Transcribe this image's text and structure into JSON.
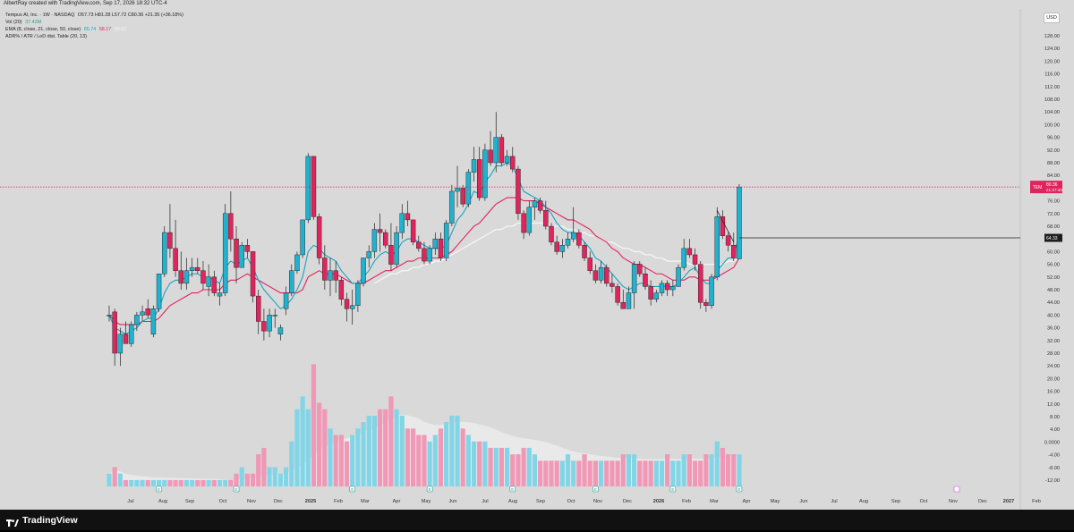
{
  "header": {
    "credit": "AlbertRay created with TradingView.com, Sep 17, 2026 18:32 UTC-4"
  },
  "legend": {
    "symbol": "Tempus AI, Inc. · 1W · NASDAQ",
    "ohlc": "O57.73 H81.28 L57.72 C80.36 +21.35 (+36.18%)",
    "vol_label": "Vol (20)",
    "vol_value": "37.42M",
    "ema_label": "EMA (8, close, 21, close, 50, close)",
    "ema8": "65.74",
    "ema21": "58.17",
    "ema50": "58.00",
    "table_label": "ADR% / ATR / LoD dist. Table (20, 13)"
  },
  "currency": "USD",
  "price_tags": {
    "last_symbol": "TEM",
    "last_price": "80.36",
    "countdown": "21:27:40",
    "hline_price": "64.33"
  },
  "colors": {
    "background": "#d9d9d9",
    "up": "#21b2cf",
    "down": "#e0245e",
    "ema8": "#19a3c3",
    "ema21": "#e0245e",
    "ema50": "#f5f5f5",
    "vol_up": "#82d5e6",
    "vol_down": "#f098b5"
  },
  "branding": {
    "logo_text": "TradingView"
  },
  "chart_data": {
    "type": "candlestick",
    "interval": "1W",
    "ylim": [
      16,
      132
    ],
    "price_ticks": [
      "128.00",
      "124.00",
      "120.00",
      "116.00",
      "112.00",
      "108.00",
      "104.00",
      "100.00",
      "96.00",
      "92.00",
      "88.00",
      "84.00",
      "80.00",
      "76.00",
      "72.00",
      "68.00",
      "64.00",
      "60.00",
      "56.00",
      "52.00",
      "48.00",
      "44.00",
      "40.00",
      "36.00",
      "32.00",
      "28.00",
      "24.00",
      "20.00",
      "16.00",
      "12.00",
      "8.00",
      "4.00",
      "0.0000",
      "-4.00",
      "-8.00",
      "-12.00"
    ],
    "x_ticks": [
      "Jul",
      "Aug",
      "Sep",
      "Oct",
      "Nov",
      "Dec",
      "2025",
      "Feb",
      "Mar",
      "Apr",
      "May",
      "Jun",
      "Jul",
      "Aug",
      "Sep",
      "Oct",
      "Nov",
      "Dec",
      "2026",
      "Feb",
      "Mar",
      "Apr",
      "May",
      "Jun",
      "Jul",
      "Aug",
      "Sep",
      "Oct",
      "Nov",
      "Dec",
      "2027",
      "Feb"
    ],
    "candles": [
      {
        "o": 40,
        "h": 43,
        "l": 38,
        "c": 40
      },
      {
        "o": 41,
        "h": 42,
        "l": 24,
        "c": 28
      },
      {
        "o": 28,
        "h": 36,
        "l": 24,
        "c": 34
      },
      {
        "o": 34,
        "h": 38,
        "l": 31,
        "c": 31
      },
      {
        "o": 31,
        "h": 38,
        "l": 30,
        "c": 37
      },
      {
        "o": 37,
        "h": 41,
        "l": 35,
        "c": 40
      },
      {
        "o": 40,
        "h": 43,
        "l": 38,
        "c": 41
      },
      {
        "o": 42,
        "h": 45,
        "l": 39,
        "c": 40
      },
      {
        "o": 34,
        "h": 43,
        "l": 33,
        "c": 42
      },
      {
        "o": 42,
        "h": 53,
        "l": 41,
        "c": 53
      },
      {
        "o": 53,
        "h": 68,
        "l": 52,
        "c": 66
      },
      {
        "o": 66,
        "h": 75,
        "l": 58,
        "c": 61
      },
      {
        "o": 61,
        "h": 70,
        "l": 52,
        "c": 54
      },
      {
        "o": 54,
        "h": 60,
        "l": 48,
        "c": 50
      },
      {
        "o": 50,
        "h": 58,
        "l": 48,
        "c": 54
      },
      {
        "o": 54,
        "h": 58,
        "l": 52,
        "c": 55
      },
      {
        "o": 55,
        "h": 58,
        "l": 53,
        "c": 54
      },
      {
        "o": 54,
        "h": 57,
        "l": 48,
        "c": 50
      },
      {
        "o": 49,
        "h": 56,
        "l": 46,
        "c": 52
      },
      {
        "o": 52,
        "h": 54,
        "l": 46,
        "c": 47
      },
      {
        "o": 46,
        "h": 50,
        "l": 43,
        "c": 47
      },
      {
        "o": 47,
        "h": 75,
        "l": 46,
        "c": 72
      },
      {
        "o": 72,
        "h": 79,
        "l": 60,
        "c": 64
      },
      {
        "o": 64,
        "h": 68,
        "l": 50,
        "c": 55
      },
      {
        "o": 55,
        "h": 63,
        "l": 55,
        "c": 62
      },
      {
        "o": 62,
        "h": 64,
        "l": 58,
        "c": 60
      },
      {
        "o": 60,
        "h": 60,
        "l": 44,
        "c": 46
      },
      {
        "o": 46,
        "h": 48,
        "l": 34,
        "c": 38
      },
      {
        "o": 38,
        "h": 42,
        "l": 32,
        "c": 35
      },
      {
        "o": 35,
        "h": 42,
        "l": 33,
        "c": 40
      },
      {
        "o": 40,
        "h": 42,
        "l": 36,
        "c": 40
      },
      {
        "o": 34,
        "h": 37,
        "l": 32,
        "c": 36
      },
      {
        "o": 42,
        "h": 49,
        "l": 40,
        "c": 47
      },
      {
        "o": 47,
        "h": 56,
        "l": 46,
        "c": 54
      },
      {
        "o": 54,
        "h": 60,
        "l": 53,
        "c": 59
      },
      {
        "o": 59,
        "h": 70,
        "l": 58,
        "c": 70
      },
      {
        "o": 70,
        "h": 91,
        "l": 69,
        "c": 90
      },
      {
        "o": 90,
        "h": 90,
        "l": 70,
        "c": 71
      },
      {
        "o": 71,
        "h": 72,
        "l": 56,
        "c": 58
      },
      {
        "o": 58,
        "h": 62,
        "l": 48,
        "c": 51
      },
      {
        "o": 51,
        "h": 58,
        "l": 46,
        "c": 54
      },
      {
        "o": 54,
        "h": 57,
        "l": 47,
        "c": 51
      },
      {
        "o": 51,
        "h": 52,
        "l": 43,
        "c": 45
      },
      {
        "o": 45,
        "h": 47,
        "l": 38,
        "c": 42
      },
      {
        "o": 42,
        "h": 48,
        "l": 37,
        "c": 43
      },
      {
        "o": 43,
        "h": 51,
        "l": 41,
        "c": 50
      },
      {
        "o": 50,
        "h": 58,
        "l": 49,
        "c": 58
      },
      {
        "o": 58,
        "h": 62,
        "l": 55,
        "c": 60
      },
      {
        "o": 60,
        "h": 69,
        "l": 58,
        "c": 67
      },
      {
        "o": 67,
        "h": 72,
        "l": 60,
        "c": 66
      },
      {
        "o": 66,
        "h": 67,
        "l": 61,
        "c": 62
      },
      {
        "o": 62,
        "h": 69,
        "l": 54,
        "c": 56
      },
      {
        "o": 56,
        "h": 68,
        "l": 55,
        "c": 66
      },
      {
        "o": 66,
        "h": 75,
        "l": 64,
        "c": 72
      },
      {
        "o": 72,
        "h": 76,
        "l": 68,
        "c": 70
      },
      {
        "o": 70,
        "h": 70,
        "l": 62,
        "c": 63
      },
      {
        "o": 63,
        "h": 65,
        "l": 60,
        "c": 61
      },
      {
        "o": 61,
        "h": 63,
        "l": 56,
        "c": 57
      },
      {
        "o": 57,
        "h": 62,
        "l": 56,
        "c": 61
      },
      {
        "o": 61,
        "h": 66,
        "l": 59,
        "c": 64
      },
      {
        "o": 64,
        "h": 66,
        "l": 57,
        "c": 58
      },
      {
        "o": 58,
        "h": 70,
        "l": 57,
        "c": 69
      },
      {
        "o": 69,
        "h": 81,
        "l": 68,
        "c": 79
      },
      {
        "o": 79,
        "h": 87,
        "l": 74,
        "c": 80
      },
      {
        "o": 80,
        "h": 81,
        "l": 74,
        "c": 75
      },
      {
        "o": 75,
        "h": 86,
        "l": 74,
        "c": 85
      },
      {
        "o": 85,
        "h": 93,
        "l": 82,
        "c": 89
      },
      {
        "o": 89,
        "h": 93,
        "l": 76,
        "c": 77
      },
      {
        "o": 77,
        "h": 94,
        "l": 76,
        "c": 92
      },
      {
        "o": 92,
        "h": 98,
        "l": 87,
        "c": 88
      },
      {
        "o": 88,
        "h": 104,
        "l": 85,
        "c": 96
      },
      {
        "o": 96,
        "h": 97,
        "l": 87,
        "c": 88
      },
      {
        "o": 88,
        "h": 92,
        "l": 87,
        "c": 90
      },
      {
        "o": 90,
        "h": 93,
        "l": 85,
        "c": 86
      },
      {
        "o": 86,
        "h": 87,
        "l": 70,
        "c": 72
      },
      {
        "o": 72,
        "h": 73,
        "l": 64,
        "c": 66
      },
      {
        "o": 66,
        "h": 76,
        "l": 65,
        "c": 74
      },
      {
        "o": 74,
        "h": 77,
        "l": 70,
        "c": 76
      },
      {
        "o": 76,
        "h": 77,
        "l": 72,
        "c": 73
      },
      {
        "o": 73,
        "h": 76,
        "l": 67,
        "c": 68
      },
      {
        "o": 68,
        "h": 69,
        "l": 62,
        "c": 63
      },
      {
        "o": 63,
        "h": 65,
        "l": 59,
        "c": 60
      },
      {
        "o": 60,
        "h": 64,
        "l": 58,
        "c": 62
      },
      {
        "o": 62,
        "h": 66,
        "l": 61,
        "c": 64
      },
      {
        "o": 64,
        "h": 74,
        "l": 63,
        "c": 66
      },
      {
        "o": 66,
        "h": 67,
        "l": 61,
        "c": 62
      },
      {
        "o": 62,
        "h": 63,
        "l": 57,
        "c": 58
      },
      {
        "o": 58,
        "h": 60,
        "l": 53,
        "c": 54
      },
      {
        "o": 54,
        "h": 56,
        "l": 50,
        "c": 51
      },
      {
        "o": 51,
        "h": 57,
        "l": 50,
        "c": 55
      },
      {
        "o": 55,
        "h": 56,
        "l": 49,
        "c": 50
      },
      {
        "o": 50,
        "h": 53,
        "l": 47,
        "c": 49
      },
      {
        "o": 49,
        "h": 50,
        "l": 43,
        "c": 44
      },
      {
        "o": 44,
        "h": 48,
        "l": 42,
        "c": 42
      },
      {
        "o": 42,
        "h": 49,
        "l": 42,
        "c": 47
      },
      {
        "o": 47,
        "h": 57,
        "l": 42,
        "c": 56
      },
      {
        "o": 56,
        "h": 57,
        "l": 52,
        "c": 53
      },
      {
        "o": 53,
        "h": 55,
        "l": 48,
        "c": 49
      },
      {
        "o": 49,
        "h": 51,
        "l": 43,
        "c": 45
      },
      {
        "o": 45,
        "h": 48,
        "l": 44,
        "c": 47
      },
      {
        "o": 47,
        "h": 51,
        "l": 46,
        "c": 50
      },
      {
        "o": 50,
        "h": 51,
        "l": 46,
        "c": 48
      },
      {
        "o": 48,
        "h": 51,
        "l": 46,
        "c": 49
      },
      {
        "o": 49,
        "h": 56,
        "l": 49,
        "c": 55
      },
      {
        "o": 55,
        "h": 64,
        "l": 54,
        "c": 61
      },
      {
        "o": 61,
        "h": 64,
        "l": 58,
        "c": 59
      },
      {
        "o": 59,
        "h": 61,
        "l": 54,
        "c": 56
      },
      {
        "o": 56,
        "h": 57,
        "l": 42,
        "c": 44
      },
      {
        "o": 44,
        "h": 45,
        "l": 41,
        "c": 43
      },
      {
        "o": 43,
        "h": 53,
        "l": 42,
        "c": 52
      },
      {
        "o": 52,
        "h": 74,
        "l": 51,
        "c": 71
      },
      {
        "o": 71,
        "h": 73,
        "l": 64,
        "c": 65
      },
      {
        "o": 65,
        "h": 66,
        "l": 60,
        "c": 62
      },
      {
        "o": 62,
        "h": 66,
        "l": 57,
        "c": 58
      },
      {
        "o": 57.73,
        "h": 81.28,
        "l": 57.72,
        "c": 80.36
      }
    ],
    "ema8": [
      40,
      36,
      35,
      34,
      35,
      36,
      38,
      39,
      39,
      42,
      47,
      50,
      51,
      51,
      52,
      53,
      53,
      52,
      52,
      51,
      50,
      55,
      57,
      56,
      57,
      58,
      55,
      51,
      48,
      46,
      44,
      42,
      43,
      45,
      48,
      52,
      60,
      62,
      61,
      59,
      58,
      57,
      54,
      52,
      50,
      50,
      52,
      54,
      57,
      59,
      60,
      59,
      60,
      63,
      64,
      64,
      63,
      62,
      61,
      61,
      61,
      62,
      66,
      70,
      72,
      75,
      79,
      78,
      82,
      84,
      87,
      87,
      88,
      87,
      83,
      79,
      78,
      77,
      76,
      74,
      72,
      69,
      67,
      66,
      66,
      65,
      63,
      61,
      58,
      57,
      55,
      53,
      51,
      49,
      48,
      49,
      50,
      50,
      49,
      49,
      49,
      49,
      49,
      50,
      52,
      54,
      55,
      52,
      50,
      50,
      54,
      56,
      58,
      58,
      66
    ],
    "ema21": [
      40,
      38,
      37,
      37,
      37,
      37,
      38,
      38,
      38,
      39,
      41,
      43,
      44,
      45,
      46,
      47,
      47,
      48,
      48,
      48,
      48,
      50,
      51,
      51,
      52,
      53,
      52,
      51,
      50,
      49,
      48,
      47,
      47,
      47,
      47,
      48,
      52,
      53,
      54,
      53,
      53,
      53,
      52,
      51,
      50,
      50,
      50,
      51,
      52,
      53,
      54,
      54,
      55,
      56,
      57,
      57,
      58,
      58,
      58,
      58,
      58,
      59,
      60,
      62,
      64,
      66,
      68,
      69,
      71,
      73,
      75,
      76,
      77,
      77,
      77,
      76,
      76,
      76,
      75,
      74,
      73,
      72,
      71,
      70,
      70,
      69,
      68,
      67,
      65,
      64,
      63,
      61,
      60,
      58,
      57,
      56,
      56,
      55,
      54,
      53,
      53,
      52,
      51,
      51,
      51,
      52,
      52,
      51,
      51,
      51,
      52,
      53,
      54,
      55,
      58
    ],
    "ema50": [
      null,
      null,
      null,
      null,
      null,
      null,
      null,
      null,
      null,
      null,
      null,
      null,
      null,
      null,
      null,
      null,
      null,
      null,
      null,
      null,
      null,
      null,
      null,
      null,
      null,
      null,
      null,
      null,
      null,
      null,
      null,
      null,
      null,
      null,
      null,
      null,
      null,
      null,
      null,
      null,
      null,
      null,
      null,
      null,
      null,
      null,
      null,
      null,
      50,
      51,
      52,
      53,
      53,
      54,
      54,
      55,
      55,
      56,
      56,
      57,
      57,
      58,
      59,
      60,
      61,
      62,
      63,
      64,
      65,
      66,
      67,
      67,
      68,
      68,
      69,
      69,
      69,
      69,
      69,
      69,
      68,
      68,
      68,
      67,
      67,
      66,
      66,
      65,
      65,
      64,
      63,
      63,
      62,
      61,
      61,
      60,
      60,
      59,
      59,
      58,
      58,
      57,
      57,
      57,
      57,
      56,
      56,
      56,
      56,
      56,
      56,
      56,
      57,
      57,
      58
    ],
    "volume_dir": "up when close >= open",
    "volume_values_scaled": [
      2,
      3,
      2,
      1,
      1,
      1,
      1,
      1,
      1,
      1,
      1,
      1,
      1,
      1,
      1,
      1,
      1,
      1,
      1,
      1,
      1,
      1,
      1,
      2,
      3,
      2,
      2,
      5,
      6,
      3,
      3,
      2,
      3,
      7,
      12,
      14,
      12,
      19,
      13,
      12,
      9,
      8,
      8,
      7,
      8,
      9,
      10,
      11,
      11,
      12,
      12,
      14,
      12,
      11,
      9,
      9,
      8,
      8,
      7,
      8,
      9,
      10,
      11,
      11,
      9,
      8,
      7,
      7,
      7,
      6,
      6,
      6,
      6,
      5,
      5,
      6,
      6,
      5,
      4,
      4,
      4,
      4,
      4,
      5,
      4,
      4,
      5,
      4,
      4,
      4,
      4,
      4,
      4,
      5,
      5,
      5,
      4,
      4,
      4,
      4,
      4,
      5,
      4,
      4,
      5,
      5,
      4,
      4,
      5,
      5,
      7,
      6,
      5,
      5,
      5
    ]
  }
}
